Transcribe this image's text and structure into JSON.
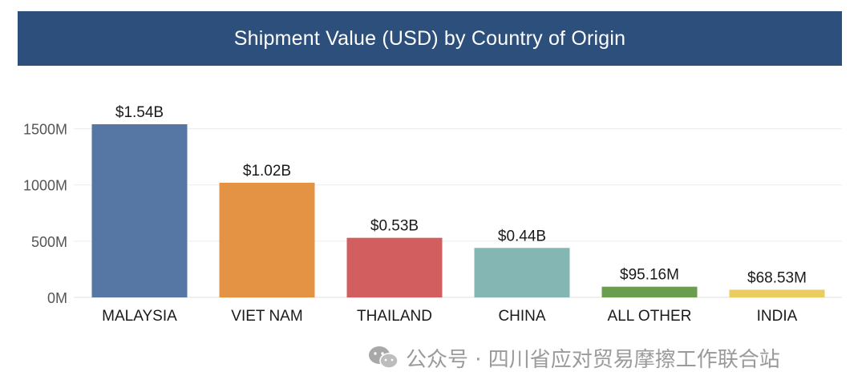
{
  "chart_data": {
    "type": "bar",
    "title": "Shipment Value (USD) by Country of Origin",
    "xlabel": "",
    "ylabel": "",
    "categories": [
      "MALAYSIA",
      "VIET NAM",
      "THAILAND",
      "CHINA",
      "ALL OTHER",
      "INDIA"
    ],
    "values": [
      1540,
      1020,
      530,
      440,
      95.16,
      68.53
    ],
    "value_unit": "M USD",
    "data_labels": [
      "$1.54B",
      "$1.02B",
      "$0.53B",
      "$0.44B",
      "$95.16M",
      "$68.53M"
    ],
    "colors": [
      "#5676a3",
      "#e49344",
      "#d35e5f",
      "#84b6b3",
      "#6a9d4e",
      "#e9cd5e"
    ],
    "y_ticks": [
      0,
      500,
      1000,
      1500
    ],
    "y_tick_labels": [
      "0M",
      "500M",
      "1000M",
      "1500M"
    ],
    "ylim": [
      0,
      1540
    ],
    "grid": true,
    "legend": "none"
  },
  "title_banner_color": "#2c4f7c",
  "watermark": {
    "icon": "wechat-icon",
    "text": "公众号 · 四川省应对贸易摩擦工作联合站"
  }
}
